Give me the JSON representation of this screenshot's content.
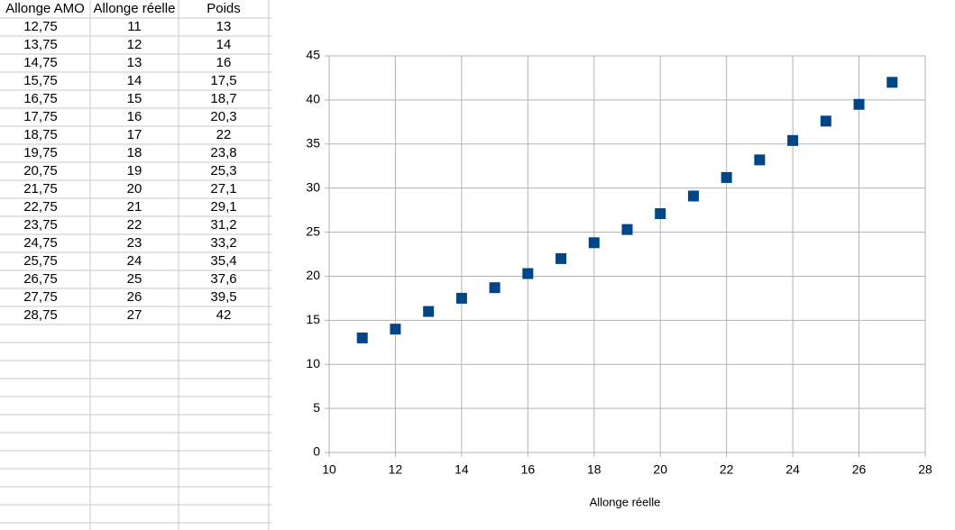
{
  "table": {
    "header": [
      "Allonge AMO",
      "Allonge réelle",
      "Poids"
    ],
    "rows": [
      [
        "12,75",
        "11",
        "13"
      ],
      [
        "13,75",
        "12",
        "14"
      ],
      [
        "14,75",
        "13",
        "16"
      ],
      [
        "15,75",
        "14",
        "17,5"
      ],
      [
        "16,75",
        "15",
        "18,7"
      ],
      [
        "17,75",
        "16",
        "20,3"
      ],
      [
        "18,75",
        "17",
        "22"
      ],
      [
        "19,75",
        "18",
        "23,8"
      ],
      [
        "20,75",
        "19",
        "25,3"
      ],
      [
        "21,75",
        "20",
        "27,1"
      ],
      [
        "22,75",
        "21",
        "29,1"
      ],
      [
        "23,75",
        "22",
        "31,2"
      ],
      [
        "24,75",
        "23",
        "33,2"
      ],
      [
        "25,75",
        "24",
        "35,4"
      ],
      [
        "26,75",
        "25",
        "37,6"
      ],
      [
        "27,75",
        "26",
        "39,5"
      ],
      [
        "28,75",
        "27",
        "42"
      ]
    ]
  },
  "chart_data": {
    "type": "scatter",
    "x_label": "Allonge réelle",
    "x": [
      11,
      12,
      13,
      14,
      15,
      16,
      17,
      18,
      19,
      20,
      21,
      22,
      23,
      24,
      25,
      26,
      27
    ],
    "values": [
      13,
      14,
      16,
      17.5,
      18.7,
      20.3,
      22,
      23.8,
      25.3,
      27.1,
      29.1,
      31.2,
      33.2,
      35.4,
      37.6,
      39.5,
      42
    ],
    "color": "#004586",
    "xlim": [
      10,
      28
    ],
    "xticks": [
      10,
      12,
      14,
      16,
      18,
      20,
      22,
      24,
      26,
      28
    ],
    "ylim": [
      0,
      45
    ],
    "yticks": [
      0,
      5,
      10,
      15,
      20,
      25,
      30,
      35,
      40,
      45
    ],
    "grid": true
  }
}
